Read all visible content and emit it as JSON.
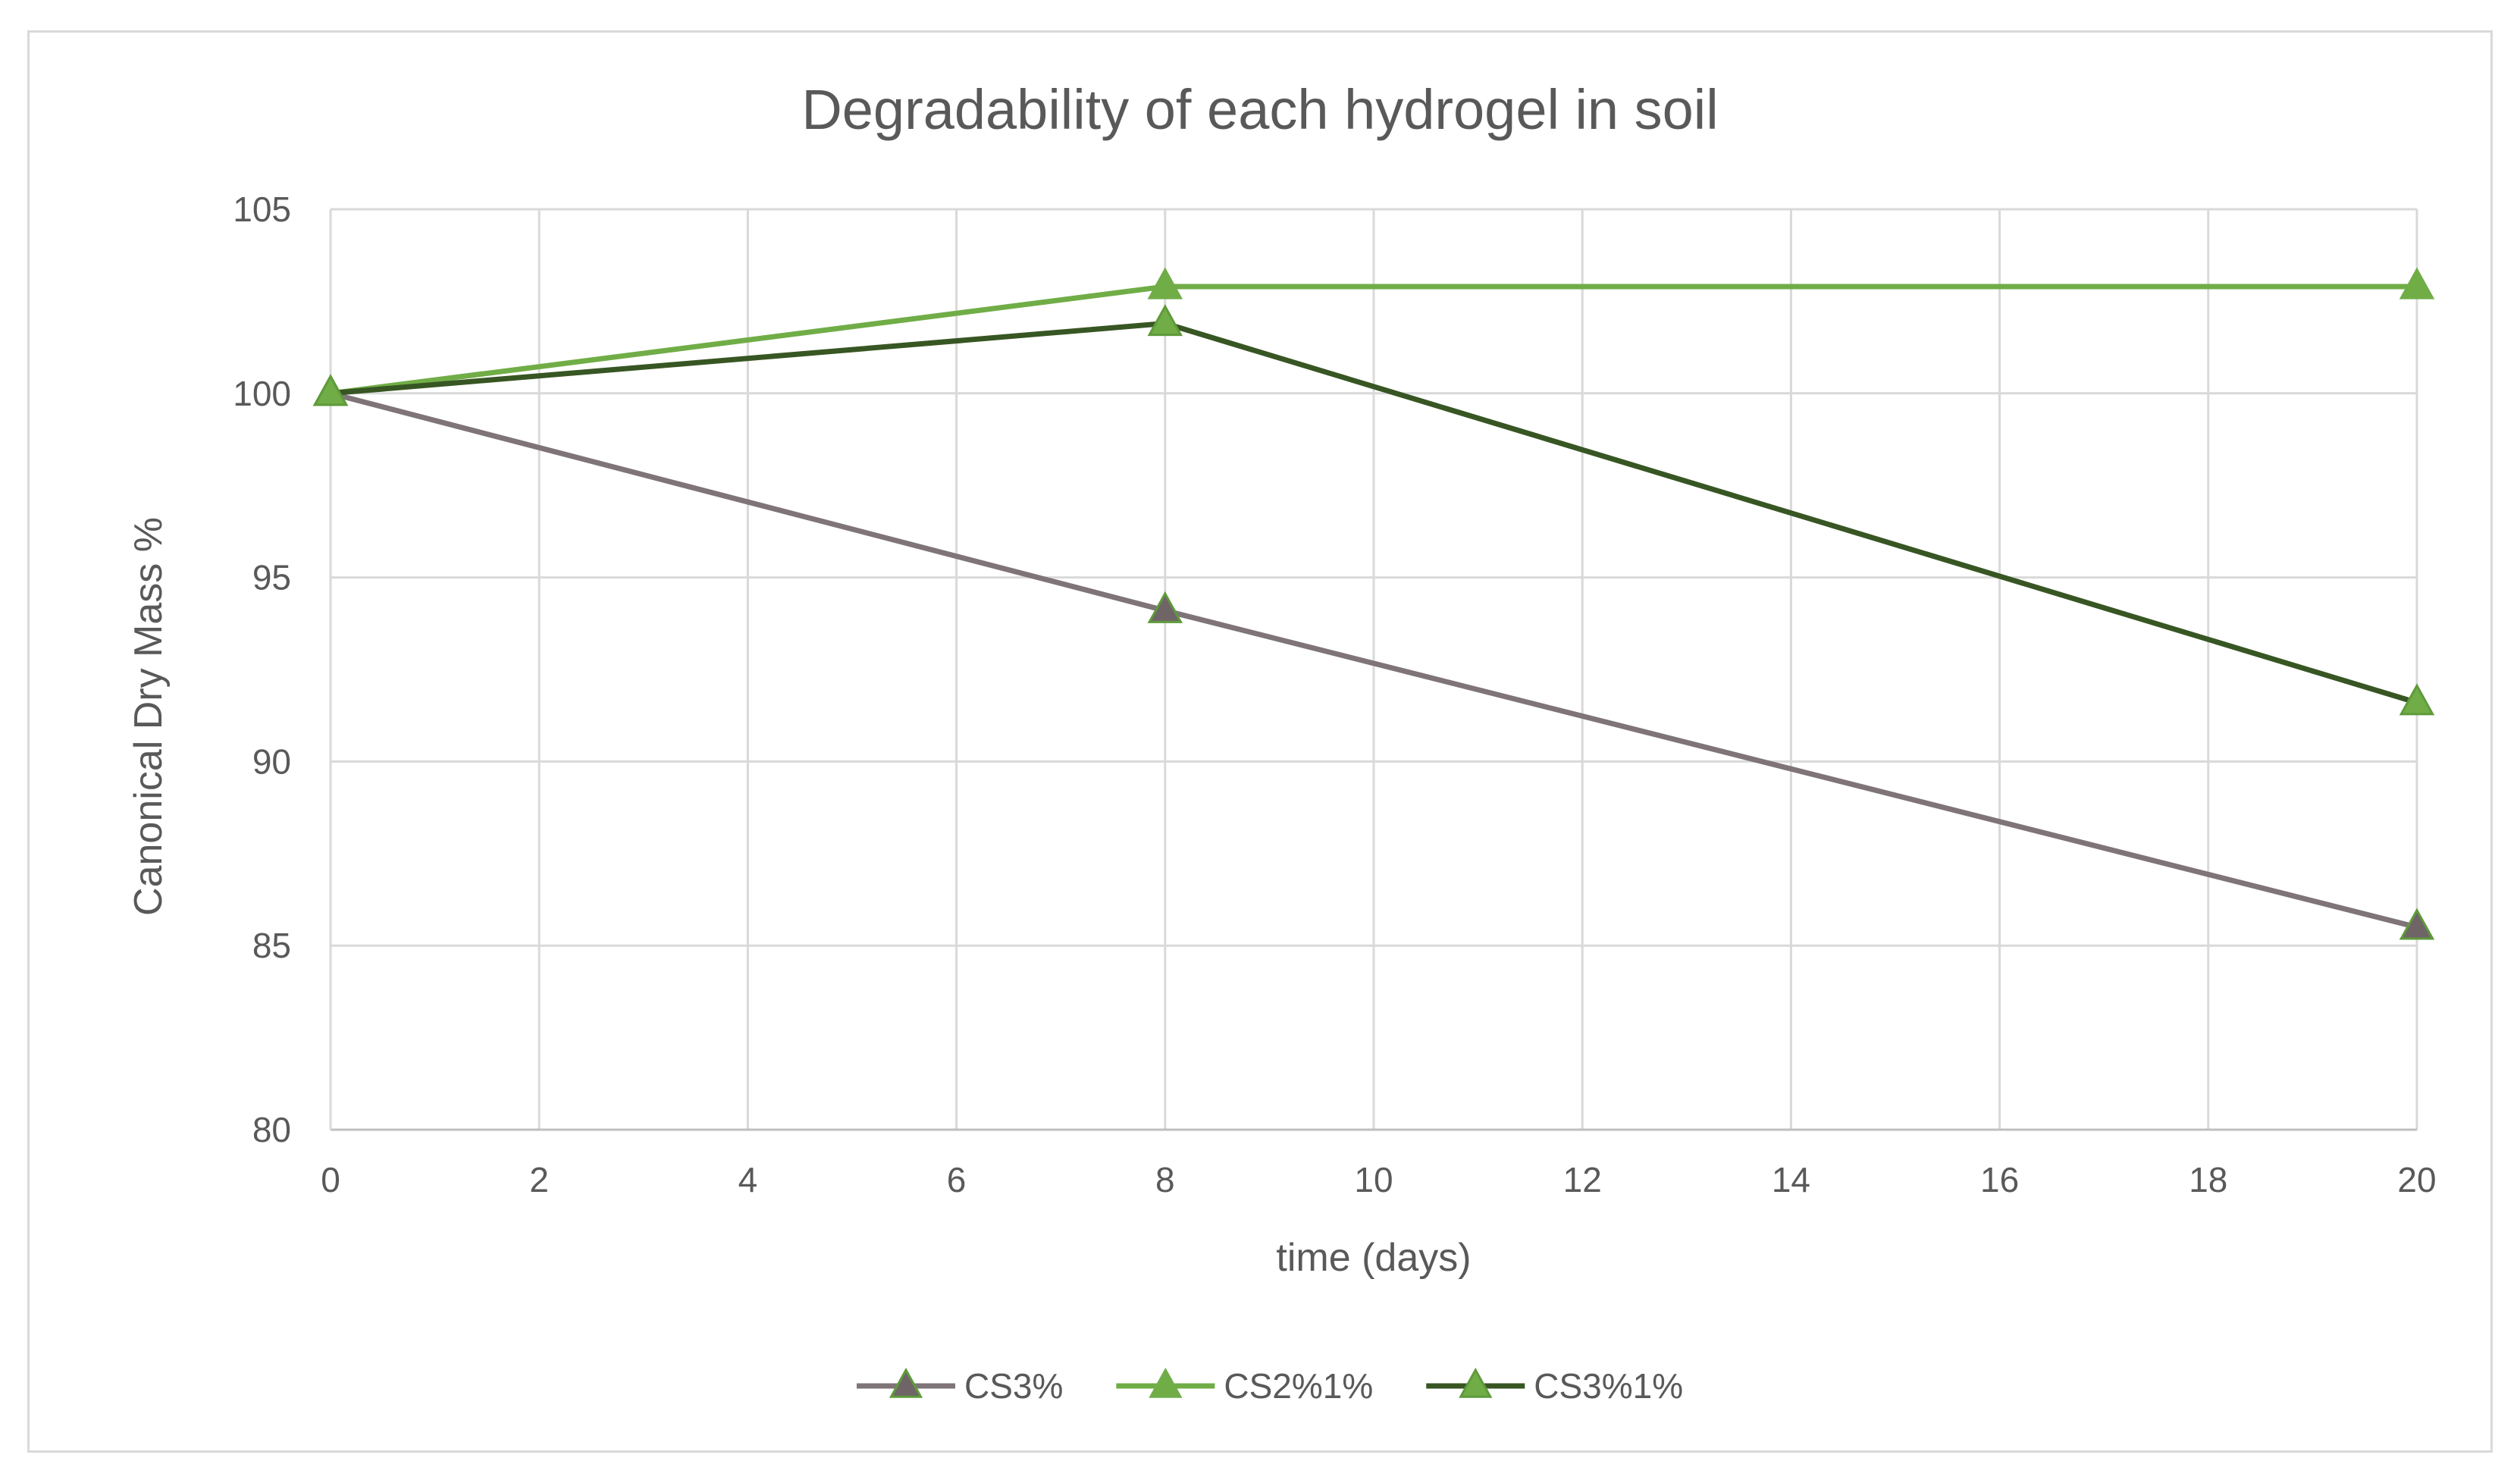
{
  "chart_data": {
    "type": "line",
    "title": "Degradability of each hydrogel in soil",
    "xlabel": "time (days)",
    "ylabel": "Canonical Dry Mass %",
    "xlim": [
      0,
      20
    ],
    "ylim": [
      80,
      105
    ],
    "xticks": [
      0,
      2,
      4,
      6,
      8,
      10,
      12,
      14,
      16,
      18,
      20
    ],
    "yticks": [
      80,
      85,
      90,
      95,
      100,
      105
    ],
    "grid": true,
    "legend_position": "bottom",
    "marker": "triangle",
    "series": [
      {
        "name": "CS3%",
        "color": "#7f7478",
        "marker_color": "#6f6567",
        "x": [
          0,
          8,
          20
        ],
        "y": [
          100,
          94.1,
          85.5
        ]
      },
      {
        "name": "CS2%1%",
        "color": "#70ad47",
        "marker_color": "#70ad47",
        "x": [
          0,
          8,
          20
        ],
        "y": [
          100,
          102.9,
          102.9
        ]
      },
      {
        "name": "CS3%1%",
        "color": "#375623",
        "marker_color": "#70ad47",
        "x": [
          0,
          8,
          20
        ],
        "y": [
          100,
          101.9,
          91.6
        ]
      }
    ]
  }
}
